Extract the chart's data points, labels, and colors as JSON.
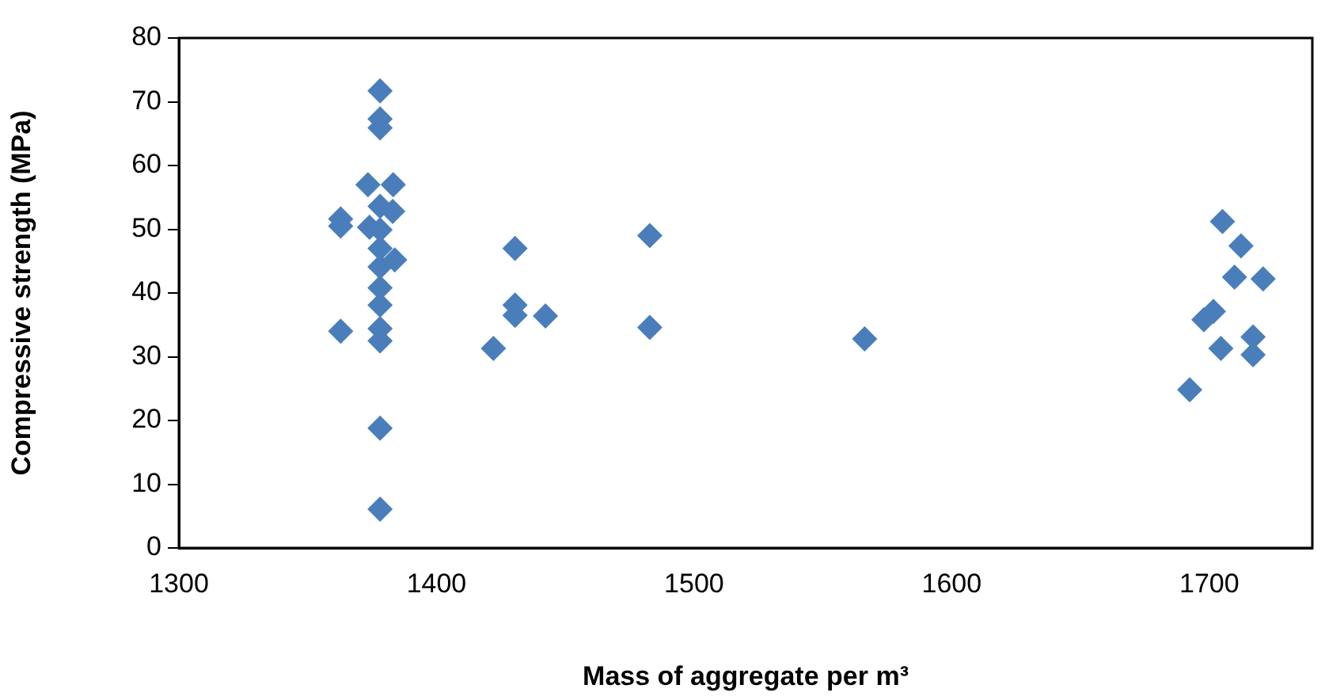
{
  "chart_data": {
    "type": "scatter",
    "xlabel": "Mass of aggregate per m³",
    "ylabel": "Compressive strength (MPa)",
    "x": [
      1378.1,
      1378.1,
      1378.1,
      1373.4,
      1383.2,
      1362.8,
      1362.8,
      1374,
      1378.1,
      1378.1,
      1383,
      1378.1,
      1378.1,
      1383.8,
      1378.1,
      1378.1,
      1362.8,
      1378.1,
      1378.1,
      1378.1,
      1378.1,
      1430.5,
      1430.5,
      1430.5,
      1442.3,
      1422.1,
      1482.8,
      1482.8,
      1566.2,
      1705.1,
      1712.3,
      1709.8,
      1720.9,
      1701.6,
      1697.9,
      1704.5,
      1717,
      1717,
      1692.4
    ],
    "values": [
      71.7,
      67.3,
      65.9,
      57.0,
      57.0,
      51.6,
      50.5,
      50.3,
      53.6,
      49.9,
      52.8,
      47.0,
      44.1,
      45.2,
      40.8,
      38.1,
      34.0,
      34.4,
      32.5,
      18.8,
      6.1,
      47.0,
      38.1,
      36.5,
      36.4,
      31.3,
      49.0,
      34.6,
      32.8,
      51.2,
      47.4,
      42.5,
      42.2,
      37.1,
      35.8,
      31.3,
      33.1,
      30.3,
      24.8
    ],
    "color": "#4a7ebb",
    "marker": "diamond",
    "xlim": [
      1300,
      1740
    ],
    "xticks": [
      1300,
      1400,
      1500,
      1600,
      1700
    ],
    "ylim": [
      0,
      80
    ],
    "yticks": [
      0,
      10,
      20,
      30,
      40,
      50,
      60,
      70,
      80
    ]
  }
}
